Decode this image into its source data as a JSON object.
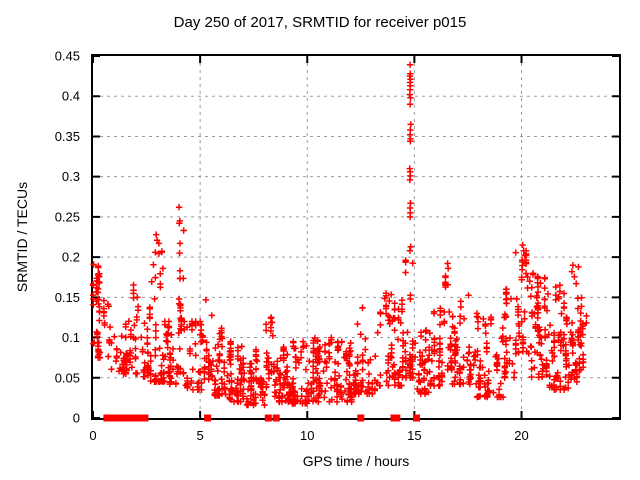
{
  "chart_data": {
    "type": "scatter",
    "title": "Day 250 of 2017, SRMTID for receiver p015",
    "xlabel": "GPS time / hours",
    "ylabel": "SRMTID / TECUs",
    "xlim": [
      0,
      24.55
    ],
    "ylim": [
      0,
      0.45
    ],
    "xticks": [
      0,
      5,
      10,
      15,
      20
    ],
    "xtick_labels": [
      "0",
      "5",
      "10",
      "15",
      "20"
    ],
    "yticks": [
      0,
      0.05,
      0.1,
      0.15,
      0.2,
      0.25,
      0.3,
      0.35,
      0.4,
      0.45
    ],
    "ytick_labels": [
      "0",
      "0.05",
      "0.1",
      "0.15",
      "0.2",
      "0.25",
      "0.3",
      "0.35",
      "0.4",
      "0.45"
    ],
    "grid": true,
    "legend": "none",
    "colors": {
      "points": "#ff0000",
      "grid": "#9b9b9b",
      "border": "#000000",
      "text": "#000000",
      "background": "#ffffff"
    },
    "series": [
      {
        "name": "srmtid-values",
        "marker": "plus",
        "color": "#ff0000",
        "bands_format": [
          "t_start",
          "t_end",
          "count",
          "y_min",
          "y_max",
          "low_skew"
        ],
        "bands": [
          [
            0.0,
            0.3,
            45,
            0.075,
            0.192,
            1.2
          ],
          [
            0.3,
            0.75,
            14,
            0.075,
            0.16,
            1.8
          ],
          [
            0.75,
            1.4,
            20,
            0.058,
            0.125,
            1.5
          ],
          [
            1.4,
            2.25,
            60,
            0.055,
            0.17,
            1.6
          ],
          [
            2.25,
            2.65,
            25,
            0.05,
            0.125,
            1.5
          ],
          [
            2.65,
            3.35,
            60,
            0.045,
            0.225,
            2.2
          ],
          [
            3.35,
            3.9,
            40,
            0.04,
            0.12,
            1.6
          ],
          [
            3.9,
            4.25,
            32,
            0.055,
            0.235,
            2.4
          ],
          [
            4.25,
            5.1,
            50,
            0.035,
            0.12,
            1.7
          ],
          [
            5.1,
            5.55,
            30,
            0.048,
            0.155,
            1.7
          ],
          [
            5.55,
            6.1,
            45,
            0.028,
            0.135,
            1.9
          ],
          [
            6.1,
            7.0,
            70,
            0.02,
            0.095,
            1.5
          ],
          [
            7.0,
            8.05,
            80,
            0.016,
            0.085,
            1.5
          ],
          [
            8.05,
            8.45,
            30,
            0.038,
            0.125,
            1.6
          ],
          [
            8.45,
            9.2,
            60,
            0.02,
            0.09,
            1.5
          ],
          [
            9.2,
            10.2,
            75,
            0.018,
            0.095,
            1.5
          ],
          [
            10.2,
            11.2,
            75,
            0.02,
            0.1,
            1.5
          ],
          [
            11.2,
            12.2,
            70,
            0.02,
            0.095,
            1.5
          ],
          [
            12.2,
            13.3,
            65,
            0.03,
            0.145,
            1.7
          ],
          [
            13.3,
            14.4,
            70,
            0.04,
            0.155,
            1.7
          ],
          [
            14.4,
            15.0,
            50,
            0.05,
            0.2,
            2.0
          ],
          [
            15.0,
            15.7,
            45,
            0.03,
            0.12,
            1.6
          ],
          [
            15.7,
            16.4,
            50,
            0.04,
            0.145,
            1.6
          ],
          [
            16.4,
            16.75,
            25,
            0.06,
            0.19,
            1.9
          ],
          [
            16.75,
            17.9,
            70,
            0.042,
            0.158,
            1.6
          ],
          [
            17.9,
            19.2,
            80,
            0.026,
            0.13,
            1.7
          ],
          [
            19.2,
            19.7,
            35,
            0.05,
            0.16,
            1.7
          ],
          [
            19.7,
            20.35,
            45,
            0.08,
            0.215,
            1.6
          ],
          [
            20.35,
            21.3,
            80,
            0.05,
            0.18,
            1.6
          ],
          [
            21.3,
            22.2,
            75,
            0.035,
            0.165,
            1.6
          ],
          [
            22.2,
            22.75,
            50,
            0.045,
            0.19,
            1.8
          ],
          [
            22.75,
            23.1,
            20,
            0.06,
            0.16,
            1.5
          ]
        ],
        "explicit_points": [
          [
            14.8,
            0.439
          ],
          [
            14.81,
            0.428
          ],
          [
            14.79,
            0.425
          ],
          [
            14.82,
            0.421
          ],
          [
            14.8,
            0.417
          ],
          [
            14.81,
            0.413
          ],
          [
            14.8,
            0.408
          ],
          [
            14.79,
            0.402
          ],
          [
            14.82,
            0.398
          ],
          [
            14.8,
            0.39
          ],
          [
            14.83,
            0.365
          ],
          [
            14.81,
            0.358
          ],
          [
            14.8,
            0.352
          ],
          [
            14.82,
            0.347
          ],
          [
            14.81,
            0.344
          ],
          [
            14.78,
            0.31
          ],
          [
            14.8,
            0.306
          ],
          [
            14.81,
            0.301
          ],
          [
            14.79,
            0.296
          ],
          [
            14.82,
            0.267
          ],
          [
            14.8,
            0.261
          ],
          [
            14.81,
            0.255
          ],
          [
            14.8,
            0.25
          ],
          [
            14.83,
            0.213
          ],
          [
            14.79,
            0.208
          ],
          [
            4.02,
            0.262
          ],
          [
            4.05,
            0.245
          ],
          [
            4.03,
            0.242
          ],
          [
            4.06,
            0.217
          ],
          [
            4.04,
            0.205
          ],
          [
            2.95,
            0.228
          ],
          [
            2.99,
            0.221
          ],
          [
            2.91,
            0.206
          ],
          [
            16.55,
            0.192
          ],
          [
            16.58,
            0.186
          ],
          [
            20.05,
            0.215
          ],
          [
            20.1,
            0.208
          ],
          [
            20.15,
            0.202
          ],
          [
            22.4,
            0.19
          ],
          [
            22.35,
            0.182
          ]
        ]
      },
      {
        "name": "baseline-flags",
        "marker": "filled-square",
        "color": "#ff0000",
        "y": 0,
        "t": [
          0.65,
          0.72,
          0.79,
          0.86,
          0.93,
          1.0,
          1.07,
          1.14,
          1.38,
          1.45,
          1.52,
          1.59,
          1.66,
          1.73,
          1.8,
          1.87,
          1.94,
          2.01,
          2.08,
          2.15,
          2.42,
          5.35,
          8.18,
          8.55,
          12.5,
          14.05,
          14.18,
          15.1
        ]
      }
    ]
  }
}
